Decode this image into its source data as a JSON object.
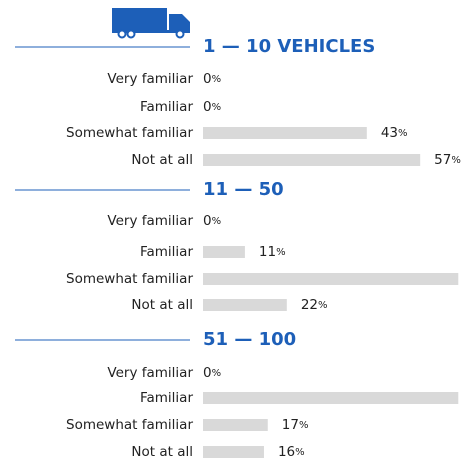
{
  "chart_data": [
    {
      "type": "bar",
      "title": "1 — 10 VEHICLES",
      "categories": [
        "Very familiar",
        "Familiar",
        "Somewhat familiar",
        "Not at all"
      ],
      "values": [
        0,
        0,
        43,
        57
      ],
      "value_labels": [
        "0%",
        "0%",
        "43%",
        "57%"
      ],
      "color": "#d9d9d9",
      "xlim": [
        0,
        100
      ]
    },
    {
      "type": "bar",
      "title": "11 — 50",
      "categories": [
        "Very familiar",
        "Familiar",
        "Somewhat familiar",
        "Not at all"
      ],
      "values": [
        0,
        11,
        67,
        22
      ],
      "value_labels": [
        "0%",
        "11%",
        null,
        "22%"
      ],
      "color": "#d9d9d9",
      "xlim": [
        0,
        100
      ]
    },
    {
      "type": "bar",
      "title": "51 — 100",
      "categories": [
        "Very familiar",
        "Familiar",
        "Somewhat familiar",
        "Not at all"
      ],
      "values": [
        0,
        67,
        17,
        16
      ],
      "value_labels": [
        "0%",
        null,
        "17%",
        "16%"
      ],
      "color": "#d9d9d9",
      "xlim": [
        0,
        100
      ]
    }
  ]
}
